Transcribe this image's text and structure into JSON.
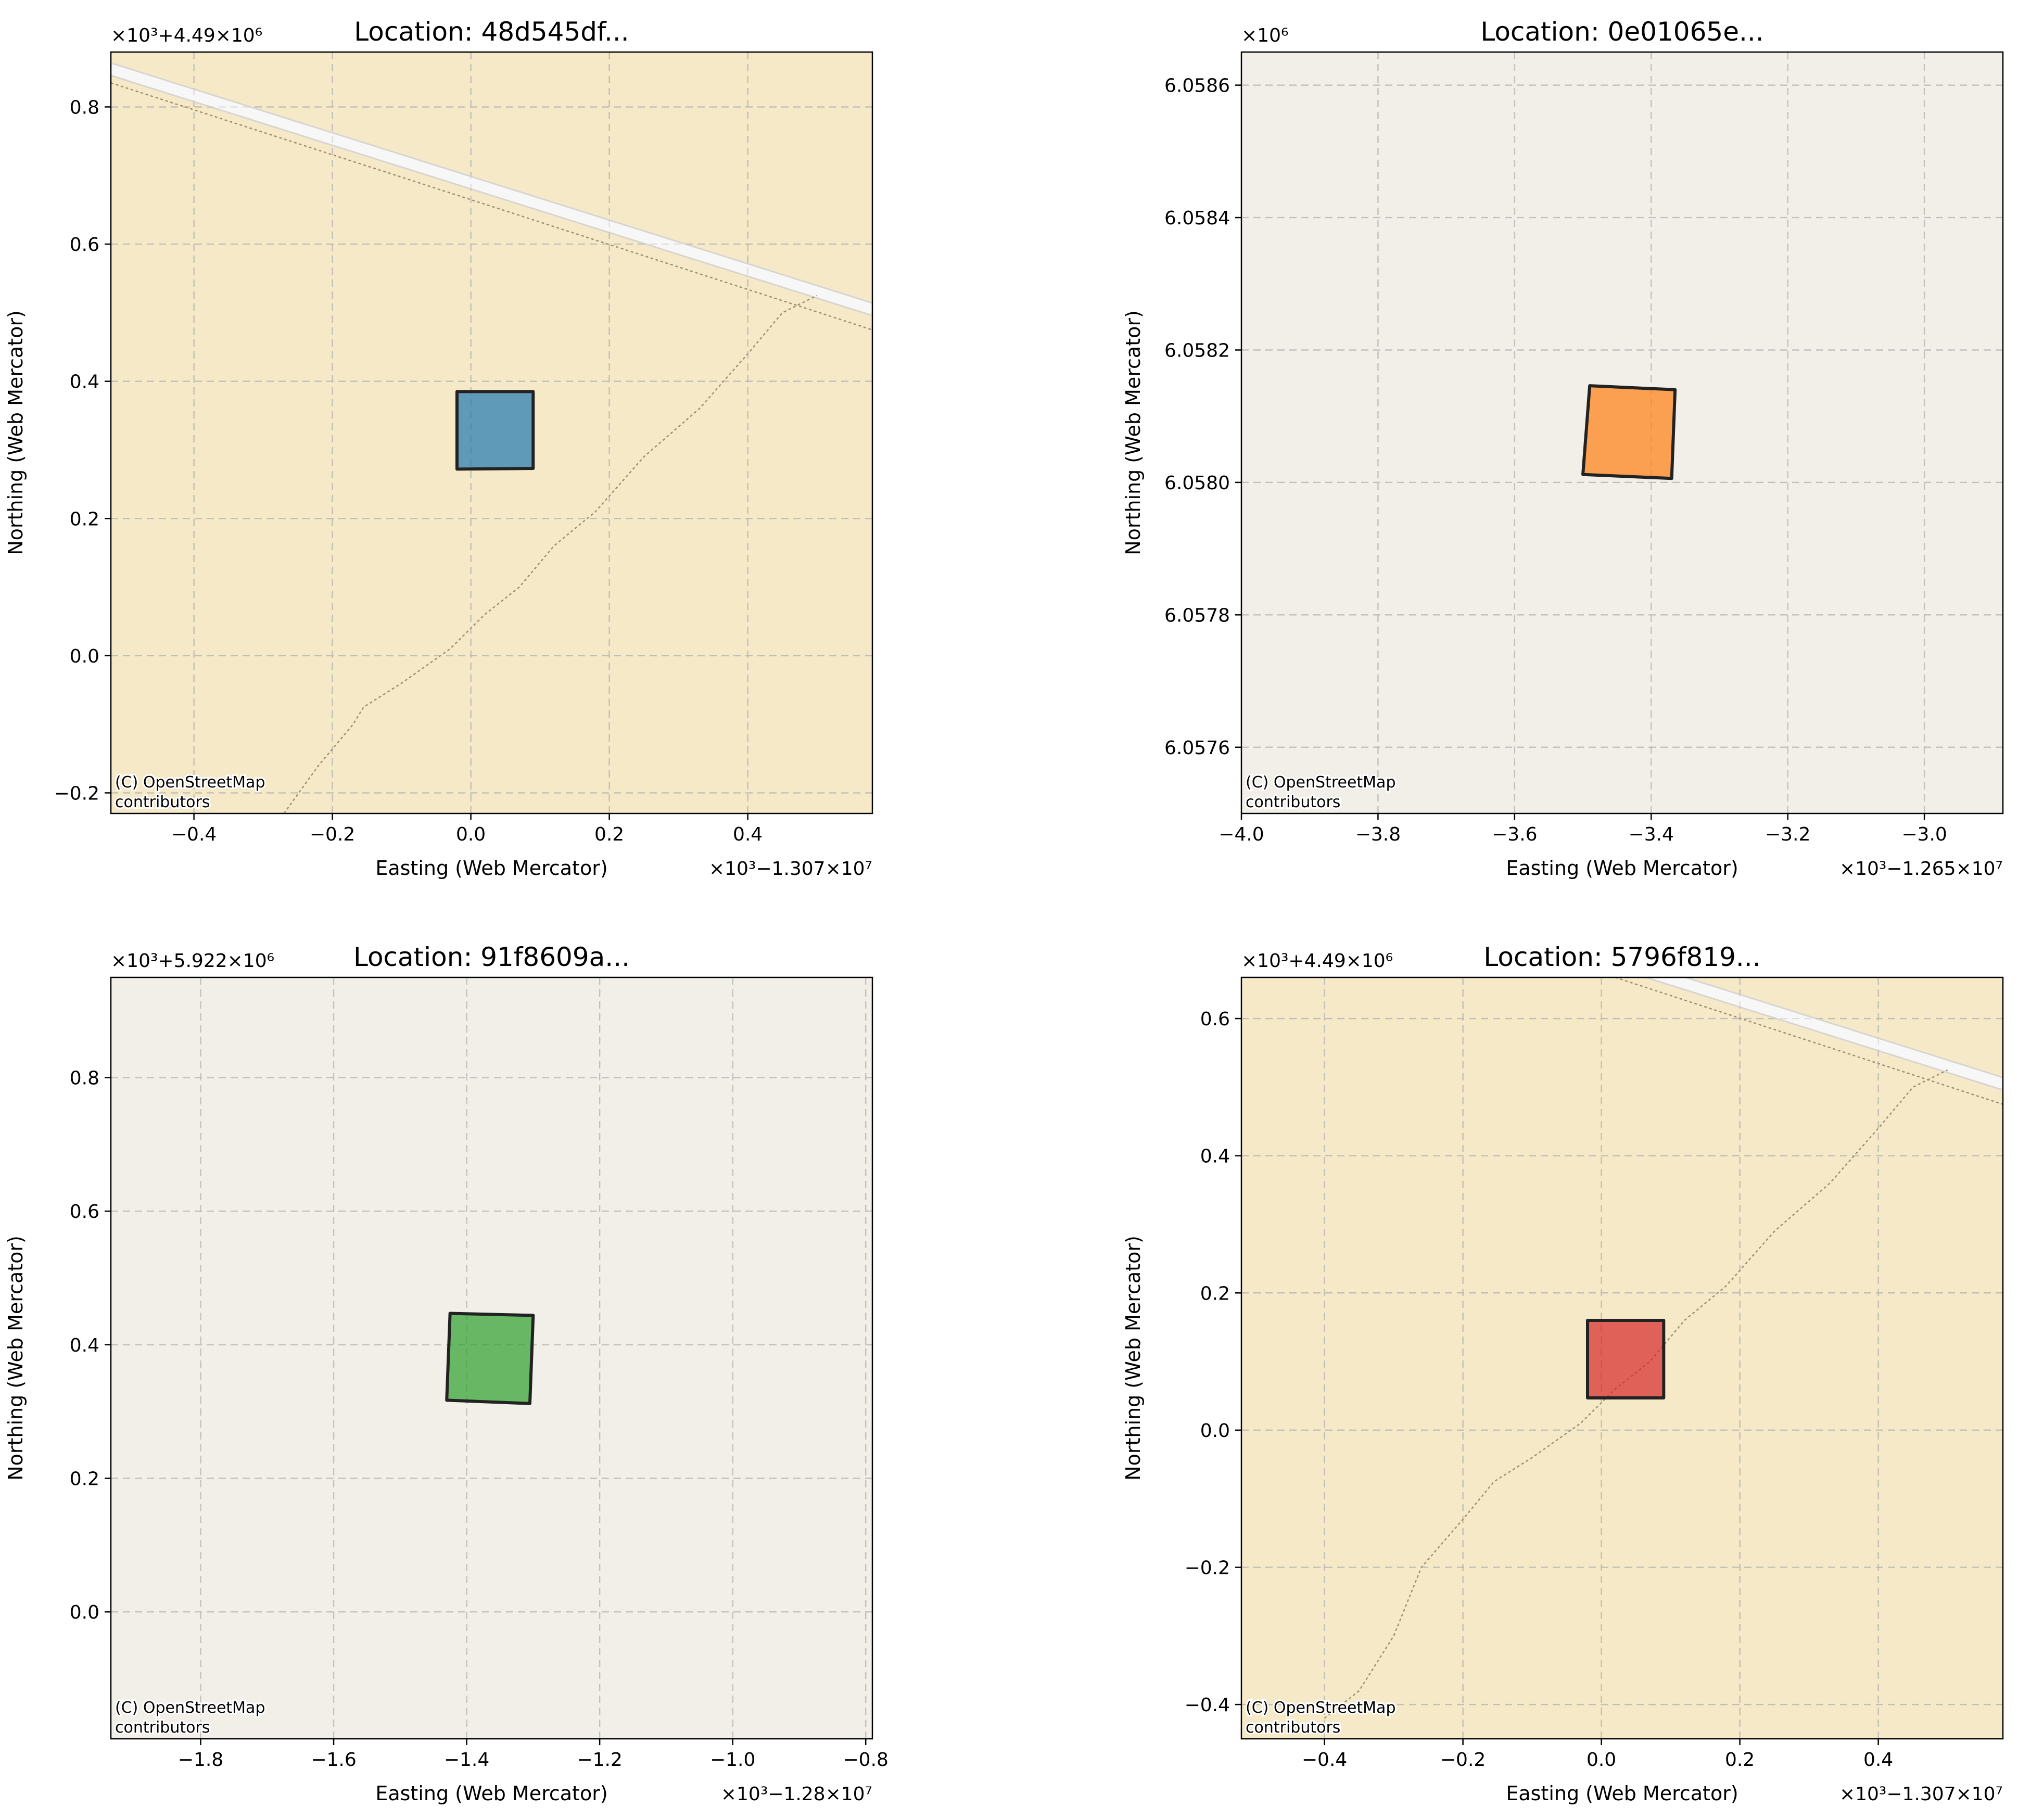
{
  "figure": {
    "xlabel": "Easting (Web Mercator)",
    "ylabel": "Northing (Web Mercator)",
    "attribution_line1": "(C) OpenStreetMap",
    "attribution_line2": "contributors"
  },
  "chart_data": [
    {
      "type": "map",
      "title": "Location: 48d545df...",
      "xlabel": "Easting (Web Mercator)",
      "ylabel": "Northing (Web Mercator)",
      "x_offset_text": "×10³−1.307×10⁷",
      "y_offset_text": "×10³+4.49×10⁶",
      "xlim": [
        -0.52,
        0.58
      ],
      "ylim": [
        -0.23,
        0.88
      ],
      "xticks": [
        -0.4,
        -0.2,
        0.0,
        0.2,
        0.4
      ],
      "yticks": [
        -0.2,
        0.0,
        0.2,
        0.4,
        0.6,
        0.8
      ],
      "xtick_labels": [
        "−0.4",
        "−0.2",
        "0.0",
        "0.2",
        "0.4"
      ],
      "ytick_labels": [
        "−0.2",
        "0.0",
        "0.2",
        "0.4",
        "0.6",
        "0.8"
      ],
      "grid": true,
      "background_color": "#f5e9c7",
      "polygon_color": "#1f77b4",
      "polygon": [
        [
          -0.02,
          0.385
        ],
        [
          0.09,
          0.385
        ],
        [
          0.09,
          0.273
        ],
        [
          -0.02,
          0.272
        ]
      ],
      "road": [
        [
          -0.52,
          0.855
        ],
        [
          0.58,
          0.505
        ]
      ],
      "paths": [
        [
          [
            -0.52,
            0.835
          ],
          [
            0.58,
            0.475
          ]
        ],
        [
          [
            -0.27,
            -0.23
          ],
          [
            -0.22,
            -0.16
          ],
          [
            -0.17,
            -0.1
          ],
          [
            -0.155,
            -0.075
          ],
          [
            -0.1,
            -0.04
          ],
          [
            -0.03,
            0.01
          ],
          [
            0.02,
            0.06
          ],
          [
            0.07,
            0.1
          ],
          [
            0.12,
            0.16
          ],
          [
            0.18,
            0.21
          ],
          [
            0.25,
            0.29
          ],
          [
            0.33,
            0.36
          ],
          [
            0.4,
            0.44
          ],
          [
            0.45,
            0.5
          ],
          [
            0.5,
            0.525
          ]
        ]
      ]
    },
    {
      "type": "map",
      "title": "Location: 0e01065e...",
      "xlabel": "Easting (Web Mercator)",
      "ylabel": "Northing (Web Mercator)",
      "x_offset_text": "×10³−1.265×10⁷",
      "y_offset_text": "×10⁶",
      "xlim": [
        -4.0,
        -2.885
      ],
      "ylim": [
        6.0575,
        6.05865
      ],
      "xticks": [
        -4.0,
        -3.8,
        -3.6,
        -3.4,
        -3.2,
        -3.0
      ],
      "yticks": [
        6.0576,
        6.0578,
        6.058,
        6.0582,
        6.0584,
        6.0586
      ],
      "xtick_labels": [
        "−4.0",
        "−3.8",
        "−3.6",
        "−3.4",
        "−3.2",
        "−3.0"
      ],
      "ytick_labels": [
        "6.0576",
        "6.0578",
        "6.0580",
        "6.0582",
        "6.0584",
        "6.0586"
      ],
      "grid": true,
      "background_color": "#f2efe9",
      "polygon_color": "#ff7f0e",
      "polygon": [
        [
          -3.49,
          6.058146
        ],
        [
          -3.365,
          6.05814
        ],
        [
          -3.37,
          6.058006
        ],
        [
          -3.5,
          6.058012
        ]
      ],
      "road": [],
      "paths": []
    },
    {
      "type": "map",
      "title": "Location: 91f8609a...",
      "xlabel": "Easting (Web Mercator)",
      "ylabel": "Northing (Web Mercator)",
      "x_offset_text": "×10³−1.28×10⁷",
      "y_offset_text": "×10³+5.922×10⁶",
      "xlim": [
        -1.935,
        -0.79
      ],
      "ylim": [
        -0.19,
        0.95
      ],
      "xticks": [
        -1.8,
        -1.6,
        -1.4,
        -1.2,
        -1.0,
        -0.8
      ],
      "yticks": [
        0.0,
        0.2,
        0.4,
        0.6,
        0.8
      ],
      "xtick_labels": [
        "−1.8",
        "−1.6",
        "−1.4",
        "−1.2",
        "−1.0",
        "−0.8"
      ],
      "ytick_labels": [
        "0.0",
        "0.2",
        "0.4",
        "0.6",
        "0.8"
      ],
      "grid": true,
      "background_color": "#f2efe9",
      "polygon_color": "#2ca02c",
      "polygon": [
        [
          -1.425,
          0.447
        ],
        [
          -1.3,
          0.444
        ],
        [
          -1.305,
          0.312
        ],
        [
          -1.43,
          0.317
        ]
      ],
      "road": [],
      "paths": []
    },
    {
      "type": "map",
      "title": "Location: 5796f819...",
      "xlabel": "Easting (Web Mercator)",
      "ylabel": "Northing (Web Mercator)",
      "x_offset_text": "×10³−1.307×10⁷",
      "y_offset_text": "×10³+4.49×10⁶",
      "xlim": [
        -0.52,
        0.58
      ],
      "ylim": [
        -0.45,
        0.66
      ],
      "xticks": [
        -0.4,
        -0.2,
        0.0,
        0.2,
        0.4
      ],
      "yticks": [
        -0.4,
        -0.2,
        0.0,
        0.2,
        0.4,
        0.6
      ],
      "xtick_labels": [
        "−0.4",
        "−0.2",
        "0.0",
        "0.2",
        "0.4"
      ],
      "ytick_labels": [
        "−0.4",
        "−0.2",
        "0.0",
        "0.2",
        "0.4",
        "0.6"
      ],
      "grid": true,
      "background_color": "#f5e9c7",
      "polygon_color": "#d62728",
      "polygon": [
        [
          -0.02,
          0.16
        ],
        [
          0.09,
          0.16
        ],
        [
          0.09,
          0.047
        ],
        [
          -0.02,
          0.047
        ]
      ],
      "road": [
        [
          0.03,
          0.68
        ],
        [
          0.58,
          0.505
        ]
      ],
      "paths": [
        [
          [
            0.02,
            0.66
          ],
          [
            0.58,
            0.475
          ]
        ],
        [
          [
            -0.4,
            -0.42
          ],
          [
            -0.35,
            -0.38
          ],
          [
            -0.3,
            -0.3
          ],
          [
            -0.26,
            -0.2
          ],
          [
            -0.2,
            -0.13
          ],
          [
            -0.155,
            -0.075
          ],
          [
            -0.1,
            -0.04
          ],
          [
            -0.03,
            0.01
          ],
          [
            0.02,
            0.06
          ],
          [
            0.07,
            0.1
          ],
          [
            0.12,
            0.16
          ],
          [
            0.18,
            0.21
          ],
          [
            0.25,
            0.29
          ],
          [
            0.33,
            0.36
          ],
          [
            0.4,
            0.44
          ],
          [
            0.45,
            0.5
          ],
          [
            0.5,
            0.525
          ]
        ]
      ]
    }
  ]
}
